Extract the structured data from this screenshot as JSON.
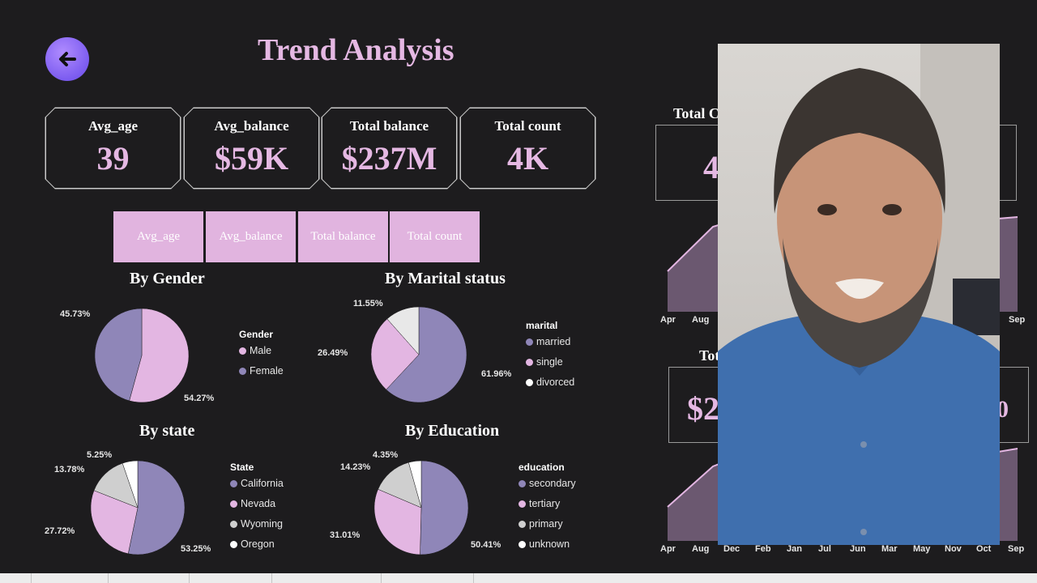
{
  "page": {
    "title": "Trend Analysis"
  },
  "kpis": [
    {
      "label": "Avg_age",
      "value": "39"
    },
    {
      "label": "Avg_balance",
      "value": "$59K"
    },
    {
      "label": "Total balance",
      "value": "$237M"
    },
    {
      "label": "Total count",
      "value": "4K"
    }
  ],
  "tabs": [
    "Avg_age",
    "Avg_balance",
    "Total balance",
    "Total count"
  ],
  "charts": {
    "gender": {
      "title": "By Gender",
      "legend_title": "Gender",
      "labels": [
        "Male",
        "Female"
      ],
      "pcts": [
        "54.27%",
        "45.73%"
      ]
    },
    "marital": {
      "title": "By Marital status",
      "legend_title": "marital",
      "labels": [
        "married",
        "single",
        "divorced"
      ],
      "pcts": [
        "61.96%",
        "26.49%",
        "11.55%"
      ]
    },
    "state": {
      "title": "By state",
      "legend_title": "State",
      "labels": [
        "California",
        "Nevada",
        "Wyoming",
        "Oregon"
      ],
      "pcts": [
        "53.25%",
        "27.72%",
        "13.78%",
        "5.25%"
      ]
    },
    "education": {
      "title": "By Education",
      "legend_title": "education",
      "labels": [
        "secondary",
        "tertiary",
        "primary",
        "unknown"
      ],
      "pcts": [
        "50.41%",
        "31.01%",
        "14.23%",
        "4.35%"
      ]
    }
  },
  "chart_data": [
    {
      "type": "pie",
      "title": "By Gender",
      "labels": [
        "Male",
        "Female"
      ],
      "values": [
        54.27,
        45.73
      ],
      "colors": [
        "#e3b6e2",
        "#8f86b8"
      ]
    },
    {
      "type": "pie",
      "title": "By Marital status",
      "labels": [
        "married",
        "single",
        "divorced"
      ],
      "values": [
        61.96,
        26.49,
        11.55
      ],
      "colors": [
        "#8f86b8",
        "#e3b6e2",
        "#e8e8e8"
      ]
    },
    {
      "type": "pie",
      "title": "By state",
      "labels": [
        "California",
        "Nevada",
        "Wyoming",
        "Oregon"
      ],
      "values": [
        53.25,
        27.72,
        13.78,
        5.25
      ],
      "colors": [
        "#8f86b8",
        "#e3b6e2",
        "#cfcfcf",
        "#ffffff"
      ]
    },
    {
      "type": "pie",
      "title": "By Education",
      "labels": [
        "secondary",
        "tertiary",
        "primary",
        "unknown"
      ],
      "values": [
        50.41,
        31.01,
        14.23,
        4.35
      ],
      "colors": [
        "#8f86b8",
        "#e3b6e2",
        "#cfcfcf",
        "#ffffff"
      ]
    }
  ],
  "right_panel": {
    "top_title_partial": "Total C",
    "top_value_partial": "4",
    "bottom_title_partial": "Tot",
    "bottom_value_partial": "$2",
    "bottom_value_right_partial": "0",
    "top_months": [
      "Apr",
      "Aug",
      "Sep"
    ],
    "bottom_months": [
      "Apr",
      "Aug",
      "Dec",
      "Feb",
      "Jan",
      "Jul",
      "Jun",
      "Mar",
      "May",
      "Nov",
      "Oct",
      "Sep"
    ]
  },
  "colors": {
    "accent": "#e5b8e3",
    "purple": "#8f86b8",
    "background": "#1d1c1e"
  }
}
